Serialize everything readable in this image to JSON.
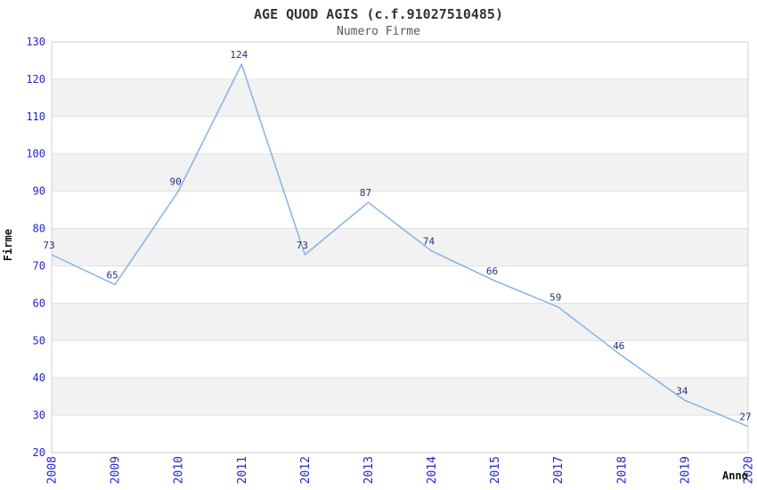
{
  "chart_data": {
    "type": "line",
    "title": "AGE QUOD AGIS (c.f.91027510485)",
    "subtitle": "Numero Firme",
    "xlabel": "Anno",
    "ylabel": "Firme",
    "categories": [
      "2008",
      "2009",
      "2010",
      "2011",
      "2012",
      "2013",
      "2014",
      "2015",
      "2017",
      "2018",
      "2019",
      "2020"
    ],
    "values": [
      73,
      65,
      90,
      124,
      73,
      87,
      74,
      66,
      59,
      46,
      34,
      27
    ],
    "data_labels": [
      "73",
      "65",
      "90",
      "124",
      "73",
      "87",
      "74",
      "66",
      "59",
      "46",
      "34",
      "27"
    ],
    "ylim": [
      20,
      130
    ],
    "ytick_step": 10,
    "ytick_labels": [
      "20",
      "30",
      "40",
      "50",
      "60",
      "70",
      "80",
      "90",
      "100",
      "110",
      "120",
      "130"
    ],
    "grid": true,
    "alternating_bands": true,
    "legend": "none",
    "markers": "none",
    "colors": {
      "line": "#85b2e8",
      "tick_labels": "#2424cc",
      "data_labels": "#2d2d80",
      "band_fill": "#f2f2f2",
      "gridline": "#e0e0e0",
      "plot_border": "#d0d0d0",
      "title": "#333333",
      "subtitle": "#595959",
      "axis_titles": "#111111",
      "background": "#ffffff"
    }
  }
}
